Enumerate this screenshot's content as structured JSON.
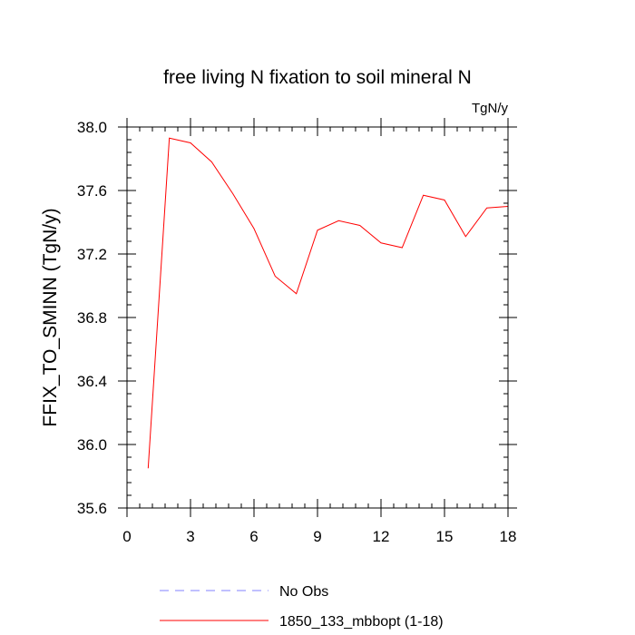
{
  "chart_data": {
    "type": "line",
    "title": "free living N fixation to soil mineral N",
    "units_label": "TgN/y",
    "xlabel": "",
    "ylabel": "FFIX_TO_SMINN  (TgN/y)",
    "xlim": [
      0,
      18
    ],
    "ylim": [
      35.6,
      38.0
    ],
    "x_ticks": [
      0,
      3,
      6,
      9,
      12,
      15,
      18
    ],
    "x_tick_labels": [
      "0",
      "3",
      "6",
      "9",
      "12",
      "15",
      "18"
    ],
    "y_ticks": [
      35.6,
      36.0,
      36.4,
      36.8,
      37.2,
      37.6,
      38.0
    ],
    "y_tick_labels": [
      "35.6",
      "36.0",
      "36.4",
      "36.8",
      "37.2",
      "37.6",
      "38.0"
    ],
    "grid": false,
    "series": [
      {
        "name": "1850_133_mbbopt (1-18)",
        "color": "#ff0000",
        "style": "solid",
        "x": [
          1,
          2,
          3,
          4,
          5,
          6,
          7,
          8,
          9,
          10,
          11,
          12,
          13,
          14,
          15,
          16,
          17,
          18
        ],
        "values": [
          35.85,
          37.93,
          37.9,
          37.78,
          37.58,
          37.36,
          37.06,
          36.95,
          37.35,
          37.41,
          37.38,
          37.27,
          37.24,
          37.57,
          37.54,
          37.31,
          37.49,
          37.5
        ]
      }
    ],
    "legend": [
      {
        "label": "No Obs",
        "color": "#8080ff",
        "style": "dashed"
      },
      {
        "label": "1850_133_mbbopt (1-18)",
        "color": "#ff0000",
        "style": "solid"
      }
    ],
    "legend_position": "bottom-center"
  }
}
